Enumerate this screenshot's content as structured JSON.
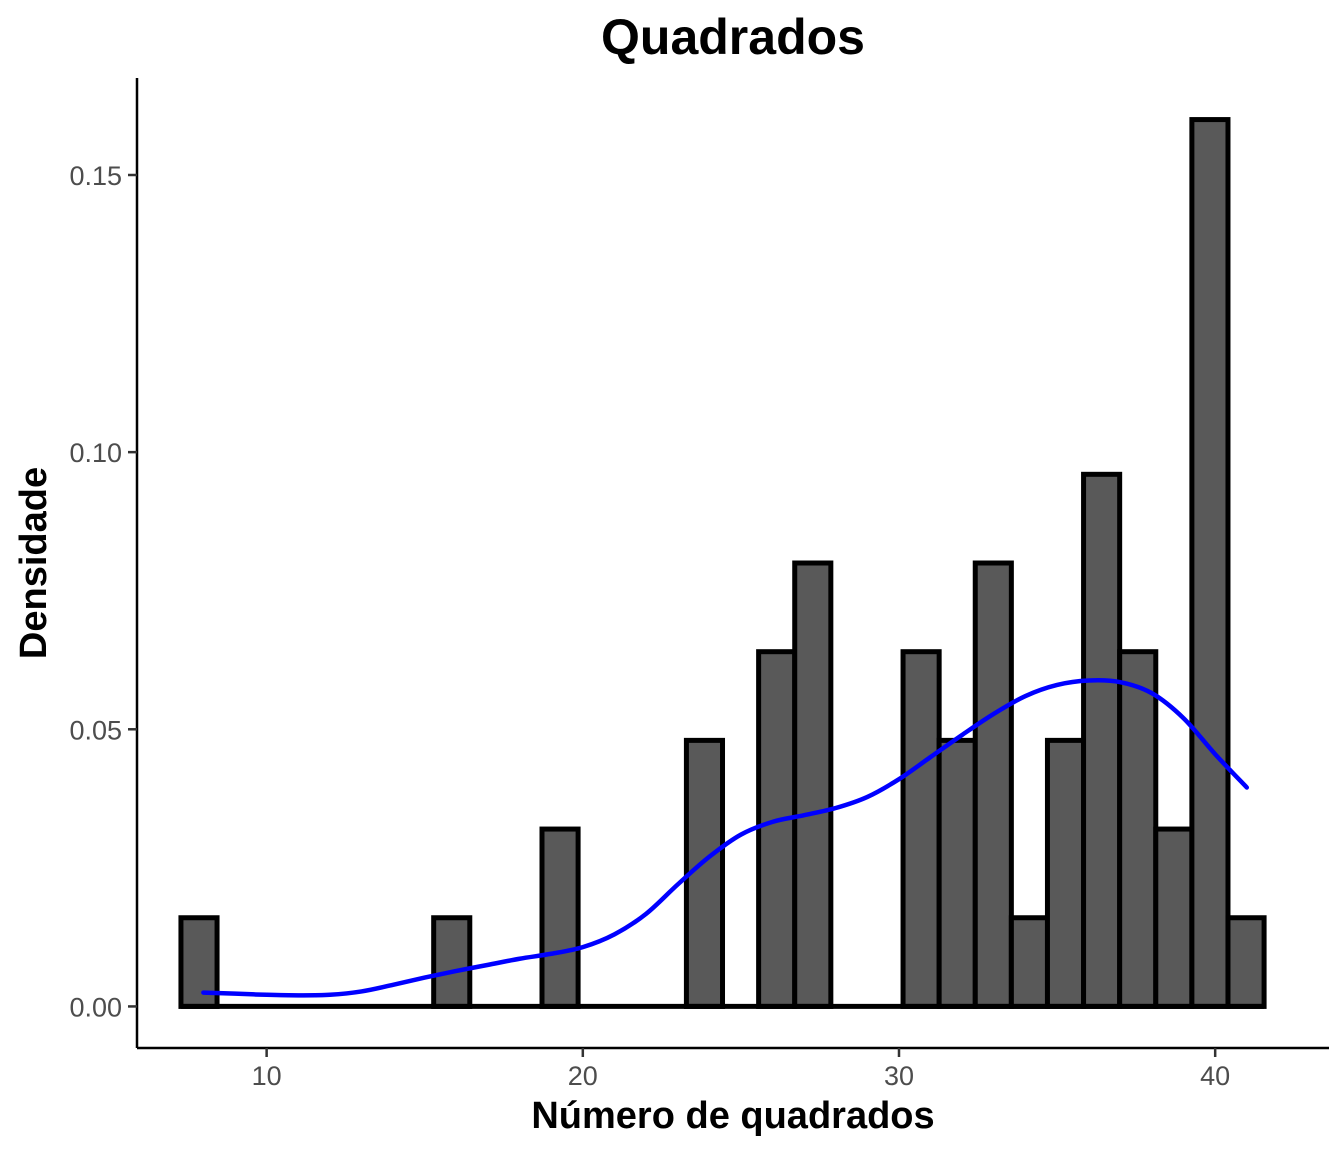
{
  "chart_data": {
    "type": "bar",
    "subtype": "histogram-with-density",
    "title": "Quadrados",
    "xlabel": "Número de quadrados",
    "ylabel": "Densidade",
    "xlim": [
      5.9,
      43.6
    ],
    "ylim": [
      -0.0075,
      0.1675
    ],
    "x_ticks": [
      10,
      20,
      30,
      40
    ],
    "x_tick_labels": [
      "10",
      "20",
      "30",
      "40"
    ],
    "y_ticks": [
      0.0,
      0.05,
      0.1,
      0.15
    ],
    "y_tick_labels": [
      "0.00",
      "0.05",
      "0.10",
      "0.15"
    ],
    "grid": false,
    "bins": {
      "width": 1.1419,
      "edges_start": 7.29,
      "values": [
        0.016,
        0,
        0,
        0,
        0,
        0,
        0,
        0.016,
        0,
        0,
        0.032,
        0,
        0,
        0,
        0.048,
        0,
        0.064,
        0.08,
        0,
        0,
        0.064,
        0.048,
        0.08,
        0.016,
        0.048,
        0.096,
        0.064,
        0.032,
        0.16,
        0.016
      ]
    },
    "bar_fill": "#595959",
    "bar_outline": "#000000",
    "density_color": "#0000ff",
    "density": {
      "x": [
        8,
        9,
        10,
        11,
        12,
        13,
        14,
        15,
        16,
        17,
        18,
        19,
        20,
        21,
        22,
        23,
        24,
        25,
        26,
        27,
        28,
        29,
        30,
        31,
        32,
        33,
        34,
        35,
        36,
        37,
        38,
        39,
        40,
        41
      ],
      "y": [
        0.0025,
        0.0023,
        0.0021,
        0.002,
        0.0021,
        0.0027,
        0.0039,
        0.0052,
        0.0064,
        0.0075,
        0.0086,
        0.0095,
        0.0107,
        0.013,
        0.0167,
        0.022,
        0.027,
        0.031,
        0.0333,
        0.0345,
        0.0358,
        0.0378,
        0.041,
        0.045,
        0.049,
        0.0528,
        0.056,
        0.058,
        0.0588,
        0.0585,
        0.0565,
        0.052,
        0.0455,
        0.0395
      ]
    }
  }
}
